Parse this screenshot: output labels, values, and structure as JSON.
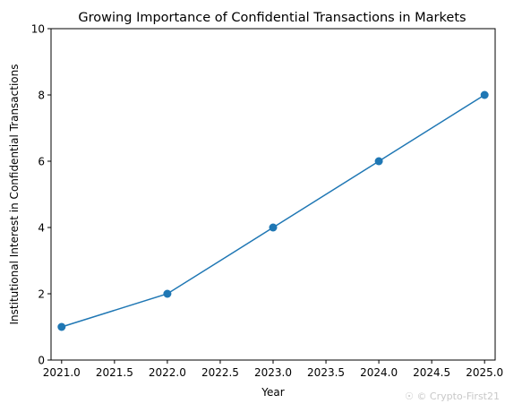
{
  "chart_data": {
    "type": "line",
    "title": "Growing Importance of Confidential Transactions in Markets",
    "xlabel": "Year",
    "ylabel": "Institutional Interest in Confidential Transactions",
    "xlim": [
      2020.9,
      2025.1
    ],
    "ylim": [
      0,
      10
    ],
    "xticks": [
      2021.0,
      2021.5,
      2022.0,
      2022.5,
      2023.0,
      2023.5,
      2024.0,
      2024.5,
      2025.0
    ],
    "xtick_labels": [
      "2021.0",
      "2021.5",
      "2022.0",
      "2022.5",
      "2023.0",
      "2023.5",
      "2024.0",
      "2024.5",
      "2025.0"
    ],
    "yticks": [
      0,
      2,
      4,
      6,
      8,
      10
    ],
    "ytick_labels": [
      "0",
      "2",
      "4",
      "6",
      "8",
      "10"
    ],
    "grid": false,
    "series": [
      {
        "x": [
          2021,
          2022,
          2023,
          2024,
          2025
        ],
        "y": [
          1,
          2,
          4,
          6,
          8
        ],
        "color": "#1f77b4",
        "marker": "circle"
      }
    ]
  },
  "watermark": "© Crypto-First21"
}
